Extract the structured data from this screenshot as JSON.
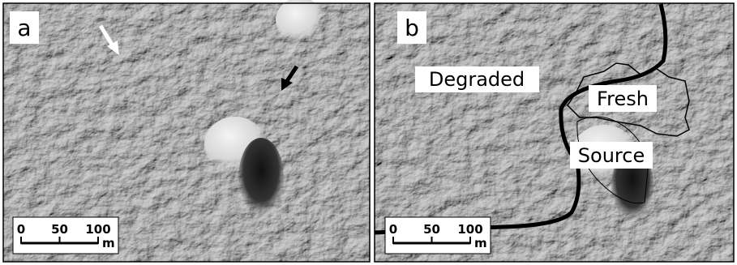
{
  "panels": [
    {
      "label": "a",
      "scale_bar": {
        "ticks": [
          0,
          50,
          100
        ],
        "unit": "m"
      }
    },
    {
      "label": "b",
      "scale_bar": {
        "ticks": [
          0,
          50,
          100
        ],
        "unit": "m"
      },
      "regions": [
        "Degraded",
        "Fresh",
        "Source"
      ]
    }
  ]
}
